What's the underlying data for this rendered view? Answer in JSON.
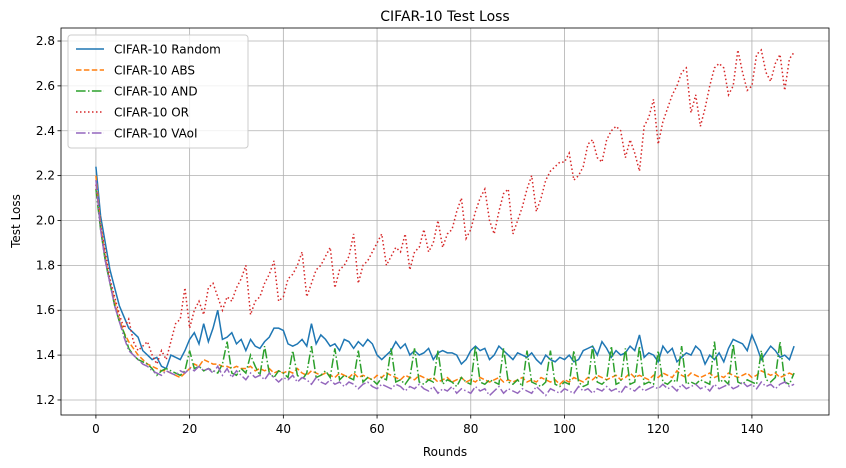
{
  "chart_data": {
    "type": "line",
    "title": "CIFAR-10 Test Loss",
    "x_label": "Rounds",
    "y_label": "Test Loss",
    "x": [
      0,
      1,
      2,
      3,
      4,
      5,
      6,
      7,
      8,
      9,
      10,
      11,
      12,
      13,
      14,
      15,
      16,
      17,
      18,
      19,
      20,
      21,
      22,
      23,
      24,
      25,
      26,
      27,
      28,
      29,
      30,
      31,
      32,
      33,
      34,
      35,
      36,
      37,
      38,
      39,
      40,
      41,
      42,
      43,
      44,
      45,
      46,
      47,
      48,
      49,
      50,
      51,
      52,
      53,
      54,
      55,
      56,
      57,
      58,
      59,
      60,
      61,
      62,
      63,
      64,
      65,
      66,
      67,
      68,
      69,
      70,
      71,
      72,
      73,
      74,
      75,
      76,
      77,
      78,
      79,
      80,
      81,
      82,
      83,
      84,
      85,
      86,
      87,
      88,
      89,
      90,
      91,
      92,
      93,
      94,
      95,
      96,
      97,
      98,
      99,
      100,
      101,
      102,
      103,
      104,
      105,
      106,
      107,
      108,
      109,
      110,
      111,
      112,
      113,
      114,
      115,
      116,
      117,
      118,
      119,
      120,
      121,
      122,
      123,
      124,
      125,
      126,
      127,
      128,
      129,
      130,
      131,
      132,
      133,
      134,
      135,
      136,
      137,
      138,
      139,
      140,
      141,
      142,
      143,
      144,
      145,
      146,
      147,
      148,
      149
    ],
    "series": [
      {
        "name": "CIFAR-10 Random",
        "color": "#1f77b4",
        "style": "solid",
        "values": [
          2.24,
          2.02,
          1.9,
          1.78,
          1.7,
          1.62,
          1.57,
          1.52,
          1.5,
          1.48,
          1.42,
          1.4,
          1.38,
          1.39,
          1.35,
          1.34,
          1.4,
          1.39,
          1.38,
          1.42,
          1.47,
          1.5,
          1.45,
          1.54,
          1.46,
          1.52,
          1.6,
          1.47,
          1.48,
          1.5,
          1.45,
          1.47,
          1.42,
          1.47,
          1.44,
          1.43,
          1.46,
          1.48,
          1.52,
          1.52,
          1.51,
          1.45,
          1.44,
          1.45,
          1.47,
          1.44,
          1.54,
          1.45,
          1.49,
          1.47,
          1.44,
          1.45,
          1.42,
          1.47,
          1.46,
          1.43,
          1.46,
          1.44,
          1.47,
          1.45,
          1.4,
          1.38,
          1.4,
          1.42,
          1.46,
          1.43,
          1.45,
          1.4,
          1.42,
          1.4,
          1.41,
          1.43,
          1.38,
          1.41,
          1.42,
          1.41,
          1.41,
          1.4,
          1.36,
          1.38,
          1.42,
          1.44,
          1.42,
          1.43,
          1.38,
          1.4,
          1.44,
          1.42,
          1.4,
          1.38,
          1.41,
          1.4,
          1.39,
          1.41,
          1.38,
          1.36,
          1.4,
          1.38,
          1.37,
          1.39,
          1.38,
          1.4,
          1.37,
          1.38,
          1.42,
          1.43,
          1.44,
          1.4,
          1.46,
          1.43,
          1.39,
          1.42,
          1.4,
          1.41,
          1.44,
          1.42,
          1.49,
          1.39,
          1.41,
          1.4,
          1.37,
          1.44,
          1.41,
          1.43,
          1.37,
          1.39,
          1.41,
          1.4,
          1.44,
          1.42,
          1.36,
          1.4,
          1.38,
          1.41,
          1.37,
          1.43,
          1.47,
          1.46,
          1.45,
          1.42,
          1.49,
          1.44,
          1.38,
          1.41,
          1.44,
          1.42,
          1.39,
          1.4,
          1.38,
          1.44
        ]
      },
      {
        "name": "CIFAR-10 ABS",
        "color": "#ff7f0e",
        "style": "dashed",
        "values": [
          2.2,
          1.98,
          1.84,
          1.72,
          1.64,
          1.56,
          1.5,
          1.46,
          1.43,
          1.4,
          1.38,
          1.36,
          1.35,
          1.34,
          1.33,
          1.33,
          1.32,
          1.31,
          1.3,
          1.32,
          1.34,
          1.36,
          1.35,
          1.38,
          1.37,
          1.36,
          1.36,
          1.35,
          1.35,
          1.34,
          1.35,
          1.34,
          1.34,
          1.35,
          1.33,
          1.34,
          1.33,
          1.34,
          1.32,
          1.33,
          1.32,
          1.33,
          1.32,
          1.34,
          1.32,
          1.31,
          1.33,
          1.32,
          1.31,
          1.32,
          1.31,
          1.3,
          1.32,
          1.31,
          1.3,
          1.32,
          1.3,
          1.31,
          1.3,
          1.29,
          1.31,
          1.3,
          1.32,
          1.31,
          1.3,
          1.29,
          1.31,
          1.3,
          1.29,
          1.31,
          1.3,
          1.29,
          1.3,
          1.28,
          1.29,
          1.3,
          1.28,
          1.29,
          1.3,
          1.28,
          1.29,
          1.28,
          1.3,
          1.29,
          1.28,
          1.29,
          1.3,
          1.28,
          1.29,
          1.28,
          1.29,
          1.3,
          1.28,
          1.29,
          1.28,
          1.3,
          1.29,
          1.28,
          1.29,
          1.27,
          1.29,
          1.28,
          1.3,
          1.29,
          1.28,
          1.3,
          1.29,
          1.31,
          1.3,
          1.29,
          1.3,
          1.31,
          1.29,
          1.3,
          1.32,
          1.3,
          1.31,
          1.3,
          1.29,
          1.31,
          1.3,
          1.32,
          1.31,
          1.3,
          1.33,
          1.31,
          1.3,
          1.32,
          1.31,
          1.3,
          1.31,
          1.32,
          1.3,
          1.31,
          1.3,
          1.32,
          1.31,
          1.3,
          1.31,
          1.32,
          1.3,
          1.31,
          1.33,
          1.32,
          1.31,
          1.32,
          1.3,
          1.31,
          1.32,
          1.31
        ]
      },
      {
        "name": "CIFAR-10 AND",
        "color": "#2ca02c",
        "style": "dashdot",
        "values": [
          2.14,
          1.96,
          1.82,
          1.72,
          1.62,
          1.55,
          1.5,
          1.43,
          1.4,
          1.38,
          1.37,
          1.36,
          1.34,
          1.31,
          1.33,
          1.34,
          1.33,
          1.32,
          1.31,
          1.33,
          1.42,
          1.34,
          1.35,
          1.33,
          1.34,
          1.33,
          1.32,
          1.36,
          1.46,
          1.32,
          1.31,
          1.34,
          1.32,
          1.4,
          1.35,
          1.31,
          1.44,
          1.32,
          1.3,
          1.33,
          1.32,
          1.3,
          1.42,
          1.31,
          1.29,
          1.32,
          1.44,
          1.3,
          1.31,
          1.33,
          1.3,
          1.43,
          1.29,
          1.31,
          1.3,
          1.29,
          1.42,
          1.28,
          1.3,
          1.29,
          1.27,
          1.3,
          1.29,
          1.43,
          1.28,
          1.29,
          1.27,
          1.3,
          1.43,
          1.28,
          1.27,
          1.29,
          1.28,
          1.42,
          1.27,
          1.29,
          1.28,
          1.26,
          1.3,
          1.28,
          1.27,
          1.44,
          1.28,
          1.27,
          1.29,
          1.28,
          1.27,
          1.43,
          1.28,
          1.27,
          1.29,
          1.26,
          1.42,
          1.28,
          1.27,
          1.26,
          1.28,
          1.42,
          1.27,
          1.26,
          1.28,
          1.27,
          1.42,
          1.28,
          1.26,
          1.27,
          1.44,
          1.28,
          1.27,
          1.29,
          1.44,
          1.27,
          1.28,
          1.43,
          1.27,
          1.28,
          1.44,
          1.27,
          1.28,
          1.27,
          1.42,
          1.28,
          1.27,
          1.29,
          1.28,
          1.44,
          1.27,
          1.28,
          1.27,
          1.29,
          1.28,
          1.27,
          1.46,
          1.28,
          1.29,
          1.27,
          1.45,
          1.28,
          1.27,
          1.29,
          1.28,
          1.27,
          1.42,
          1.29,
          1.28,
          1.3,
          1.46,
          1.28,
          1.27,
          1.32
        ]
      },
      {
        "name": "CIFAR-10 OR",
        "color": "#d62728",
        "style": "dotted",
        "values": [
          2.16,
          1.98,
          1.86,
          1.74,
          1.66,
          1.58,
          1.52,
          1.56,
          1.46,
          1.42,
          1.44,
          1.46,
          1.4,
          1.36,
          1.42,
          1.38,
          1.46,
          1.54,
          1.56,
          1.7,
          1.52,
          1.6,
          1.64,
          1.58,
          1.7,
          1.72,
          1.66,
          1.6,
          1.66,
          1.64,
          1.7,
          1.74,
          1.8,
          1.58,
          1.64,
          1.66,
          1.72,
          1.76,
          1.82,
          1.64,
          1.66,
          1.74,
          1.76,
          1.8,
          1.86,
          1.66,
          1.72,
          1.78,
          1.8,
          1.84,
          1.88,
          1.7,
          1.78,
          1.8,
          1.84,
          1.94,
          1.72,
          1.8,
          1.82,
          1.86,
          1.9,
          1.94,
          1.8,
          1.84,
          1.88,
          1.86,
          1.94,
          1.78,
          1.86,
          1.88,
          1.96,
          1.86,
          1.9,
          2.0,
          1.88,
          1.94,
          1.96,
          2.04,
          2.1,
          1.92,
          1.96,
          2.04,
          2.1,
          2.14,
          2.0,
          1.94,
          2.04,
          2.12,
          2.14,
          1.94,
          2.0,
          2.06,
          2.14,
          2.2,
          2.04,
          2.1,
          2.18,
          2.22,
          2.24,
          2.26,
          2.26,
          2.3,
          2.18,
          2.2,
          2.24,
          2.34,
          2.36,
          2.28,
          2.26,
          2.36,
          2.4,
          2.42,
          2.4,
          2.28,
          2.36,
          2.3,
          2.22,
          2.42,
          2.46,
          2.54,
          2.34,
          2.44,
          2.5,
          2.56,
          2.6,
          2.66,
          2.68,
          2.48,
          2.56,
          2.42,
          2.5,
          2.6,
          2.68,
          2.7,
          2.68,
          2.56,
          2.6,
          2.76,
          2.66,
          2.58,
          2.6,
          2.74,
          2.76,
          2.66,
          2.62,
          2.7,
          2.74,
          2.58,
          2.72,
          2.75
        ]
      },
      {
        "name": "CIFAR-10 VAoI",
        "color": "#9467bd",
        "style": "dashdot",
        "values": [
          2.18,
          1.96,
          1.82,
          1.72,
          1.62,
          1.55,
          1.48,
          1.42,
          1.4,
          1.38,
          1.36,
          1.35,
          1.33,
          1.32,
          1.31,
          1.33,
          1.32,
          1.31,
          1.33,
          1.32,
          1.34,
          1.33,
          1.35,
          1.33,
          1.34,
          1.32,
          1.35,
          1.31,
          1.34,
          1.3,
          1.33,
          1.31,
          1.29,
          1.32,
          1.3,
          1.31,
          1.29,
          1.32,
          1.3,
          1.28,
          1.3,
          1.29,
          1.31,
          1.28,
          1.3,
          1.29,
          1.27,
          1.3,
          1.28,
          1.27,
          1.29,
          1.27,
          1.28,
          1.26,
          1.28,
          1.27,
          1.25,
          1.27,
          1.28,
          1.26,
          1.25,
          1.27,
          1.26,
          1.25,
          1.27,
          1.26,
          1.24,
          1.26,
          1.25,
          1.27,
          1.25,
          1.24,
          1.26,
          1.23,
          1.25,
          1.24,
          1.26,
          1.23,
          1.25,
          1.24,
          1.23,
          1.26,
          1.24,
          1.25,
          1.22,
          1.24,
          1.26,
          1.23,
          1.25,
          1.24,
          1.23,
          1.25,
          1.24,
          1.23,
          1.26,
          1.24,
          1.22,
          1.25,
          1.24,
          1.23,
          1.25,
          1.24,
          1.23,
          1.26,
          1.24,
          1.25,
          1.23,
          1.25,
          1.24,
          1.26,
          1.24,
          1.25,
          1.23,
          1.26,
          1.25,
          1.24,
          1.26,
          1.24,
          1.25,
          1.26,
          1.25,
          1.27,
          1.25,
          1.26,
          1.24,
          1.27,
          1.25,
          1.26,
          1.27,
          1.25,
          1.26,
          1.24,
          1.27,
          1.25,
          1.26,
          1.27,
          1.25,
          1.26,
          1.28,
          1.26,
          1.27,
          1.25,
          1.28,
          1.26,
          1.27,
          1.25,
          1.27,
          1.28,
          1.26,
          1.27
        ]
      }
    ],
    "xlim": [
      -7.45,
      156.45
    ],
    "xticks": [
      0,
      20,
      40,
      60,
      80,
      100,
      120,
      140
    ],
    "ylim": [
      1.133,
      2.858
    ],
    "yticks": [
      1.2,
      1.4,
      1.6,
      1.8,
      {
        "value": 2,
        "label": "2.0"
      },
      2.2,
      2.4,
      2.6,
      2.8
    ],
    "grid": true,
    "legend": "upper left"
  }
}
